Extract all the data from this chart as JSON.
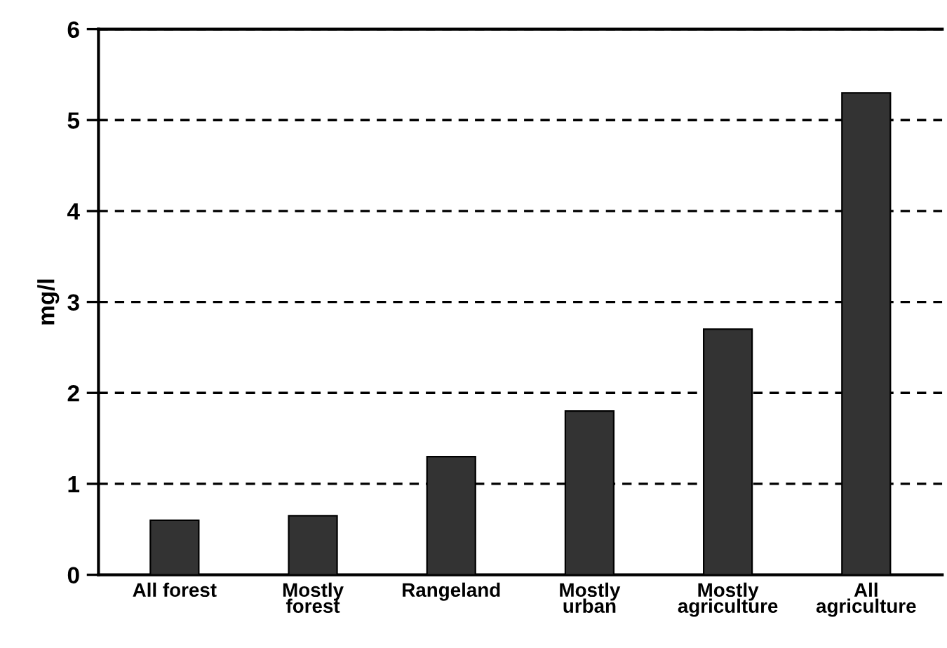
{
  "chart_data": {
    "type": "bar",
    "ylabel": "mg/l",
    "categories": [
      "All forest",
      "Mostly\nforest",
      "Rangeland",
      "Mostly\nurban",
      "Mostly\nagriculture",
      "All\nagriculture"
    ],
    "values": [
      0.6,
      0.65,
      1.3,
      1.8,
      2.7,
      5.3
    ],
    "color": "#333333",
    "ylim": [
      0,
      6
    ],
    "yticks": [
      0,
      1,
      2,
      3,
      4,
      5,
      6
    ],
    "grid": "y"
  }
}
